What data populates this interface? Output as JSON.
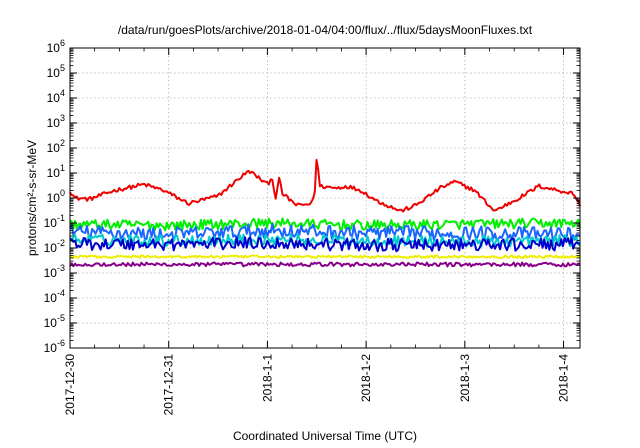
{
  "chart_data": {
    "type": "line",
    "title": "/data/run/goesPlots/archive/2018-01-04/04:00/flux/../flux/5daysMoonFluxes.txt",
    "xlabel": "Coordinated Universal Time (UTC)",
    "ylabel": "protons/cm²-s-sr-MeV",
    "y_scale": "log",
    "ylim_exponents": [
      -6,
      6
    ],
    "xlim_days": [
      "2017-12-30",
      "2018-01-04 04:00"
    ],
    "grid": true,
    "legend": "none",
    "x_ticks": [
      "2017-12-30",
      "2017-12-31",
      "2018-1-1",
      "2018-1-2",
      "2018-1-3",
      "2018-1-4"
    ],
    "y_ticks": [
      {
        "base": "10",
        "exp": "6"
      },
      {
        "base": "10",
        "exp": "5"
      },
      {
        "base": "10",
        "exp": "4"
      },
      {
        "base": "10",
        "exp": "3"
      },
      {
        "base": "10",
        "exp": "2"
      },
      {
        "base": "10",
        "exp": "1"
      },
      {
        "base": "10",
        "exp": "0"
      },
      {
        "base": "10",
        "exp": "-1"
      },
      {
        "base": "10",
        "exp": "-2"
      },
      {
        "base": "10",
        "exp": "-3"
      },
      {
        "base": "10",
        "exp": "-4"
      },
      {
        "base": "10",
        "exp": "-5"
      },
      {
        "base": "10",
        "exp": "-6"
      }
    ],
    "series": [
      {
        "color": "#ee0000",
        "noise": 0.08,
        "points": [
          [
            0.0,
            2.0
          ],
          [
            0.05,
            1.0
          ],
          [
            0.2,
            0.9
          ],
          [
            0.45,
            2.0
          ],
          [
            0.75,
            3.5
          ],
          [
            0.95,
            2.0
          ],
          [
            1.2,
            0.6
          ],
          [
            1.5,
            1.2
          ],
          [
            1.75,
            8.0
          ],
          [
            1.82,
            12.0
          ],
          [
            2.0,
            3.5
          ],
          [
            2.05,
            6.5
          ],
          [
            2.08,
            0.9
          ],
          [
            2.12,
            6.0
          ],
          [
            2.15,
            1.5
          ],
          [
            2.3,
            0.5
          ],
          [
            2.45,
            0.6
          ],
          [
            2.48,
            2.0
          ],
          [
            2.5,
            50.0
          ],
          [
            2.53,
            3.0
          ],
          [
            2.7,
            2.5
          ],
          [
            2.8,
            3.0
          ],
          [
            2.95,
            2.0
          ],
          [
            3.1,
            0.8
          ],
          [
            3.35,
            0.3
          ],
          [
            3.5,
            0.5
          ],
          [
            3.75,
            2.5
          ],
          [
            3.9,
            4.5
          ],
          [
            4.1,
            2.0
          ],
          [
            4.3,
            0.3
          ],
          [
            4.55,
            1.0
          ],
          [
            4.75,
            3.0
          ],
          [
            4.95,
            2.0
          ],
          [
            5.1,
            1.5
          ],
          [
            5.17,
            0.5
          ]
        ]
      },
      {
        "color": "#00ee00",
        "noise": 0.2,
        "points": [
          [
            0.0,
            0.09
          ],
          [
            1.0,
            0.08
          ],
          [
            2.0,
            0.1
          ],
          [
            3.0,
            0.08
          ],
          [
            4.0,
            0.09
          ],
          [
            5.17,
            0.1
          ]
        ]
      },
      {
        "color": "#1a66ff",
        "noise": 0.28,
        "points": [
          [
            0.0,
            0.045
          ],
          [
            1.0,
            0.035
          ],
          [
            2.0,
            0.05
          ],
          [
            3.0,
            0.04
          ],
          [
            4.0,
            0.04
          ],
          [
            5.17,
            0.035
          ]
        ]
      },
      {
        "color": "#00cccc",
        "noise": 0.22,
        "points": [
          [
            0.0,
            0.022
          ],
          [
            1.0,
            0.02
          ],
          [
            2.0,
            0.022
          ],
          [
            3.0,
            0.02
          ],
          [
            4.0,
            0.018
          ],
          [
            5.17,
            0.02
          ]
        ]
      },
      {
        "color": "#0000cc",
        "noise": 0.25,
        "points": [
          [
            0.0,
            0.015
          ],
          [
            1.0,
            0.014
          ],
          [
            2.0,
            0.016
          ],
          [
            3.0,
            0.013
          ],
          [
            4.0,
            0.013
          ],
          [
            5.17,
            0.014
          ]
        ]
      },
      {
        "color": "#eeee00",
        "noise": 0.05,
        "points": [
          [
            0.0,
            0.0045
          ],
          [
            2.5,
            0.0045
          ],
          [
            5.17,
            0.0045
          ]
        ]
      },
      {
        "color": "#880088",
        "noise": 0.08,
        "points": [
          [
            0.0,
            0.0022
          ],
          [
            2.5,
            0.0022
          ],
          [
            5.17,
            0.0022
          ]
        ]
      }
    ]
  }
}
